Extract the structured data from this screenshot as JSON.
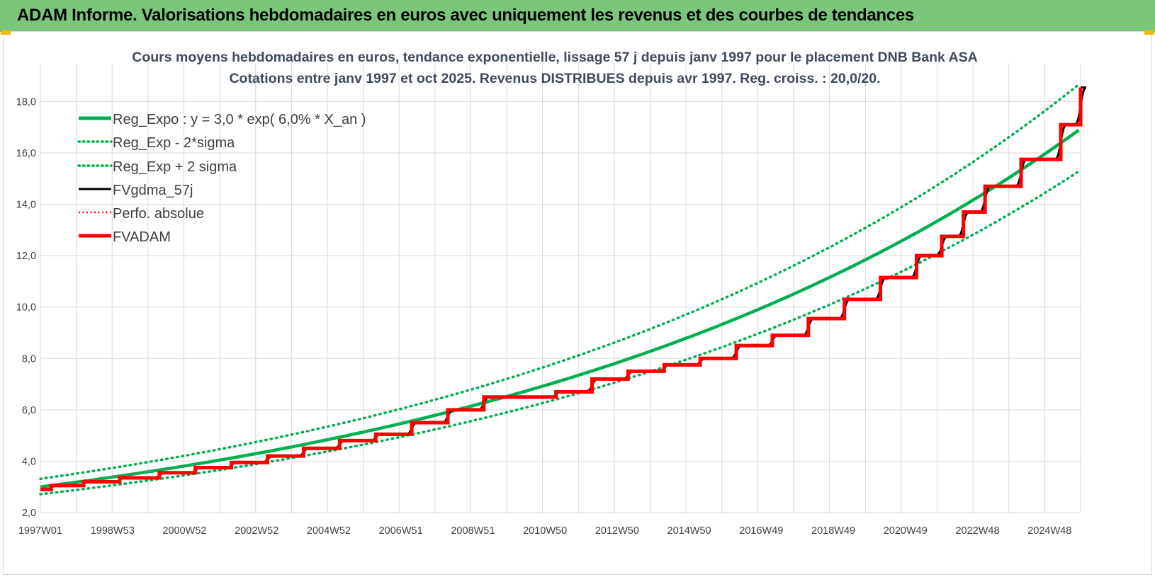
{
  "header": {
    "title": "ADAM Informe. Valorisations hebdomadaires en euros avec uniquement les revenus et des courbes de tendances"
  },
  "chart_data": {
    "type": "line",
    "title_lines": [
      "Cours moyens hebdomadaires en euros, tendance exponentielle, lissage 57 j depuis janv 1997 pour le placement DNB Bank ASA",
      "Cotations entre janv 1997 et oct 2025. Revenus DISTRIBUES depuis avr 1997. Reg. croiss. : 20,0/20."
    ],
    "x_tick_labels": [
      "1997W01",
      "1998W53",
      "2000W52",
      "2002W52",
      "2004W52",
      "2006W51",
      "2008W51",
      "2010W50",
      "2012W50",
      "2014W50",
      "2016W49",
      "2018W49",
      "2020W49",
      "2022W48",
      "2024W48"
    ],
    "x_range_years": [
      1997.0,
      2025.85
    ],
    "y_ticks": [
      "2,0",
      "4,0",
      "6,0",
      "8,0",
      "10,0",
      "12,0",
      "14,0",
      "16,0",
      "18,0"
    ],
    "y_tick_values": [
      2,
      4,
      6,
      8,
      10,
      12,
      14,
      16,
      18
    ],
    "ylim": [
      2,
      19.5
    ],
    "grid": true,
    "legend_position": "top-left",
    "colors": {
      "green": "#00b050",
      "black": "#000000",
      "red": "#ff0000",
      "grid": "#d9d9d9"
    },
    "series": [
      {
        "name": "Reg_Expo : y = 3,0 * exp( 6,0% *  X_an )",
        "style": "solid-green",
        "a": 3.0,
        "rate": 0.06
      },
      {
        "name": "Reg_Exp - 2*sigma",
        "style": "dotted-green",
        "factor": 0.905
      },
      {
        "name": "Reg_Exp + 2 sigma",
        "style": "dotted-green",
        "factor": 1.105
      },
      {
        "name": "FVgdma_57j",
        "style": "solid-black"
      },
      {
        "name": "Perfo. absolue",
        "style": "dotted-red"
      },
      {
        "name": "FVADAM",
        "style": "solid-red-thick",
        "steps": [
          [
            1997.0,
            2.9
          ],
          [
            1997.3,
            3.05
          ],
          [
            1998.2,
            3.2
          ],
          [
            1999.2,
            3.35
          ],
          [
            2000.3,
            3.55
          ],
          [
            2001.3,
            3.75
          ],
          [
            2002.3,
            3.95
          ],
          [
            2003.3,
            4.2
          ],
          [
            2004.3,
            4.5
          ],
          [
            2005.3,
            4.8
          ],
          [
            2006.3,
            5.05
          ],
          [
            2007.3,
            5.5
          ],
          [
            2008.3,
            6.0
          ],
          [
            2009.3,
            6.5
          ],
          [
            2011.3,
            6.7
          ],
          [
            2012.3,
            7.2
          ],
          [
            2013.3,
            7.5
          ],
          [
            2014.3,
            7.75
          ],
          [
            2015.3,
            8.0
          ],
          [
            2016.3,
            8.5
          ],
          [
            2017.3,
            8.9
          ],
          [
            2018.3,
            9.55
          ],
          [
            2019.3,
            10.3
          ],
          [
            2020.3,
            11.15
          ],
          [
            2021.3,
            12.0
          ],
          [
            2022.0,
            12.75
          ],
          [
            2022.6,
            13.7
          ],
          [
            2023.2,
            14.7
          ],
          [
            2024.2,
            15.75
          ],
          [
            2025.3,
            17.1
          ],
          [
            2025.85,
            18.55
          ]
        ],
        "end_value": 18.55
      }
    ]
  }
}
